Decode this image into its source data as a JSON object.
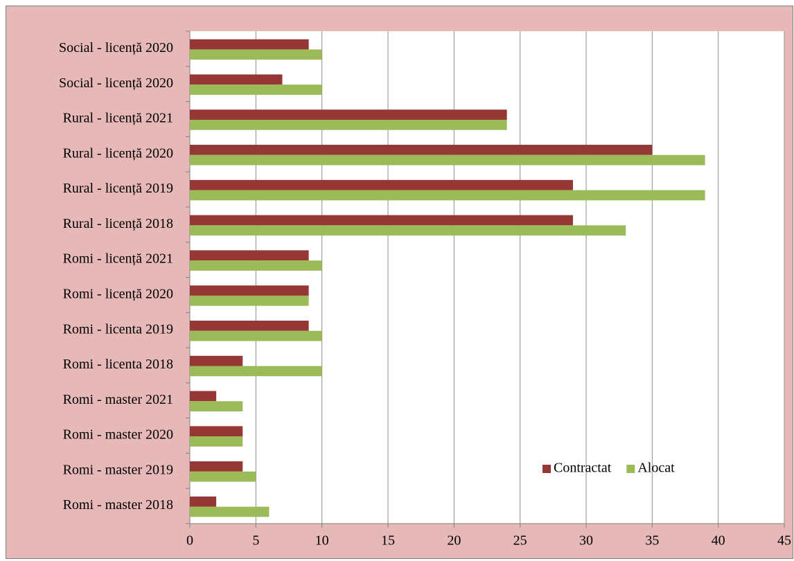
{
  "chart_data": {
    "type": "hbar",
    "categories": [
      "Social - licență 2020",
      "Social - licență 2020",
      "Rural - licență 2021",
      "Rural - licență 2020",
      "Rural - licență 2019",
      "Rural - licență 2018",
      "Romi - licență 2021",
      "Romi - licență 2020",
      "Romi - licenta 2019",
      "Romi - licenta 2018",
      "Romi - master 2021",
      "Romi - master 2020",
      "Romi - master 2019",
      "Romi - master 2018"
    ],
    "series": [
      {
        "name": "Contractat",
        "color": "#953735",
        "values": [
          9,
          7,
          24,
          35,
          29,
          29,
          9,
          9,
          9,
          4,
          2,
          4,
          4,
          2
        ]
      },
      {
        "name": "Alocat",
        "color": "#9bbb59",
        "values": [
          10,
          10,
          24,
          39,
          39,
          33,
          10,
          9,
          10,
          10,
          4,
          4,
          5,
          6
        ]
      }
    ],
    "xlim": [
      0,
      45
    ],
    "xticks": [
      0,
      5,
      10,
      15,
      20,
      25,
      30,
      35,
      40,
      45
    ],
    "grid": true,
    "legend_position": "lower right"
  }
}
